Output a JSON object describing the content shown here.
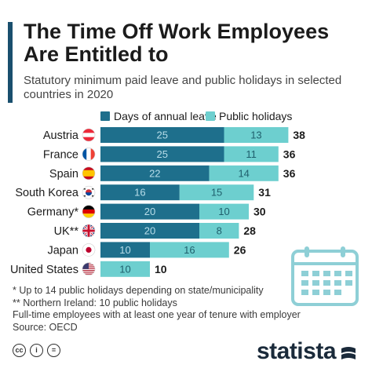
{
  "header": {
    "title": "The Time Off Work Employees Are Entitled to",
    "subtitle": "Statutory minimum paid leave and public holidays in selected countries in 2020"
  },
  "colors": {
    "annual_leave": "#1e6f8c",
    "public_holidays": "#6dcfcf",
    "accent": "#1a4f6e"
  },
  "chart_data": {
    "type": "bar",
    "orientation": "horizontal",
    "stacked": true,
    "categories": [
      "Austria",
      "France",
      "Spain",
      "South Korea",
      "Germany*",
      "UK**",
      "Japan",
      "United States"
    ],
    "flags": [
      "austria-flag-icon",
      "france-flag-icon",
      "spain-flag-icon",
      "south-korea-flag-icon",
      "germany-flag-icon",
      "uk-flag-icon",
      "japan-flag-icon",
      "united-states-flag-icon"
    ],
    "series": [
      {
        "name": "Days of annual leave",
        "values": [
          25,
          25,
          22,
          16,
          20,
          20,
          10,
          0
        ]
      },
      {
        "name": "Public holidays",
        "values": [
          13,
          11,
          14,
          15,
          10,
          8,
          16,
          10
        ]
      }
    ],
    "totals": [
      38,
      36,
      36,
      31,
      30,
      28,
      26,
      10
    ],
    "legend_position": "top",
    "grid": false,
    "xlim": [
      0,
      38
    ]
  },
  "footnotes": [
    "*   Up to 14 public holidays depending on state/municipality",
    "** Northern Ireland: 10 public holidays",
    "Full-time employees with at least one year of tenure with employer",
    "Source: OECD"
  ],
  "footer": {
    "brand": "statista",
    "license_icons": [
      "cc-icon",
      "by-icon",
      "nd-icon"
    ]
  }
}
